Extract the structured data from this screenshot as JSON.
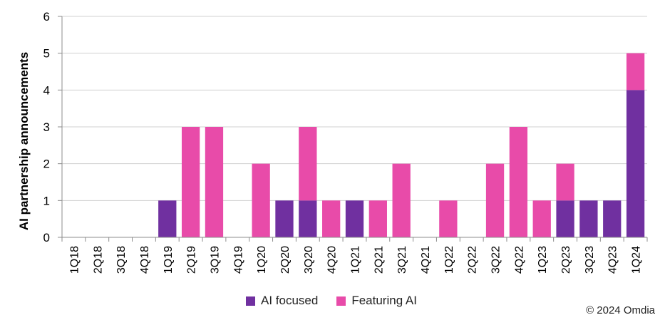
{
  "chart_data": {
    "type": "bar",
    "stacked": true,
    "title": "",
    "xlabel": "",
    "ylabel": "AI partnership announcements",
    "ylim": [
      0,
      6
    ],
    "yticks": [
      0,
      1,
      2,
      3,
      4,
      5,
      6
    ],
    "categories": [
      "1Q18",
      "2Q18",
      "3Q18",
      "4Q18",
      "1Q19",
      "2Q19",
      "3Q19",
      "4Q19",
      "1Q20",
      "2Q20",
      "3Q20",
      "4Q20",
      "1Q21",
      "2Q21",
      "3Q21",
      "4Q21",
      "1Q22",
      "2Q22",
      "3Q22",
      "4Q22",
      "1Q23",
      "2Q23",
      "3Q23",
      "4Q23",
      "1Q24"
    ],
    "series": [
      {
        "name": "AI focused",
        "color": "#7030a0",
        "values": [
          0,
          0,
          0,
          0,
          1,
          0,
          0,
          0,
          0,
          1,
          1,
          0,
          1,
          0,
          0,
          0,
          0,
          0,
          0,
          0,
          0,
          1,
          1,
          1,
          4
        ]
      },
      {
        "name": "Featuring AI",
        "color": "#e84ba9",
        "values": [
          0,
          0,
          0,
          0,
          0,
          3,
          3,
          0,
          2,
          0,
          2,
          1,
          0,
          1,
          2,
          0,
          1,
          0,
          2,
          3,
          1,
          1,
          0,
          0,
          1
        ]
      }
    ],
    "legend_position": "bottom"
  },
  "footer": {
    "copyright": "© 2024 Omdia"
  }
}
